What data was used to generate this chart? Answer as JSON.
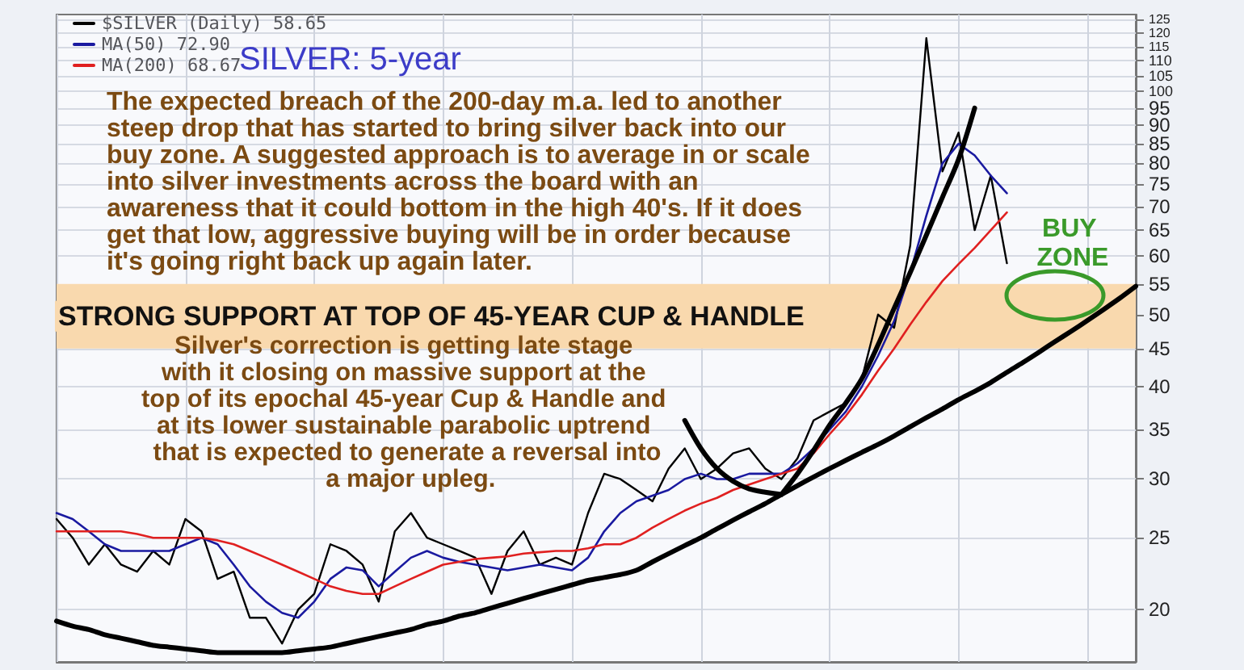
{
  "chart_data": {
    "type": "line",
    "title": "SILVER: 5-year",
    "categories": [
      null,
      null,
      null,
      null,
      null,
      null,
      null,
      null,
      null,
      null,
      null,
      null,
      null,
      null,
      null,
      null,
      null,
      null,
      null,
      null,
      null,
      null,
      null,
      null,
      null,
      null,
      null,
      null,
      null,
      null,
      null,
      null,
      null,
      null,
      null,
      null,
      null,
      null,
      null,
      null,
      null,
      null,
      null,
      null,
      null,
      null,
      null,
      null,
      null,
      null,
      null,
      null,
      null,
      null,
      null,
      null,
      null,
      null,
      null,
      null,
      null,
      null,
      null,
      null,
      null,
      null,
      null,
      null
    ],
    "series": [
      {
        "name": "$SILVER (Daily) 58.65",
        "color": "#000000",
        "values": [
          26.5,
          25,
          23,
          24.5,
          23,
          22.5,
          24,
          23,
          26.5,
          25.5,
          22,
          22.5,
          19.5,
          19.5,
          18,
          20,
          21,
          24.5,
          24,
          23,
          20.5,
          25.5,
          27,
          25,
          24.5,
          24,
          23.5,
          21,
          24,
          25.5,
          23,
          23.5,
          23,
          27,
          30.5,
          30,
          29,
          28,
          31,
          33,
          30,
          31,
          32.5,
          33,
          31,
          30,
          32,
          36,
          37,
          38,
          41,
          50,
          48,
          62,
          118,
          78,
          88,
          65,
          77,
          58.65,
          null,
          null,
          null,
          null,
          null,
          null,
          null,
          null
        ]
      },
      {
        "name": "MA(50) 72.90",
        "color": "#1a1aa0",
        "values": [
          27,
          26.5,
          25.5,
          24.5,
          24,
          24,
          24,
          24,
          24.5,
          25,
          24.5,
          23,
          21.5,
          20.5,
          19.8,
          19.5,
          20.5,
          22,
          22.8,
          22.6,
          21.5,
          22.5,
          23.5,
          24,
          23.5,
          23.2,
          23,
          22.8,
          22.6,
          22.8,
          23,
          22.8,
          22.6,
          23.5,
          25.5,
          27,
          28,
          28.5,
          29,
          30,
          30.5,
          30,
          30,
          30.5,
          30.5,
          30.5,
          31.5,
          33,
          35,
          37,
          40,
          44,
          49,
          57,
          68,
          80,
          85,
          82,
          77,
          72.9,
          null,
          null,
          null,
          null,
          null,
          null,
          null,
          null
        ]
      },
      {
        "name": "MA(200) 68.67",
        "color": "#e02020",
        "values": [
          25.5,
          25.5,
          25.5,
          25.5,
          25.5,
          25.3,
          25,
          25,
          25,
          25,
          24.8,
          24.5,
          24,
          23.5,
          23,
          22.5,
          22,
          21.5,
          21.2,
          21,
          21,
          21.5,
          22,
          22.5,
          23,
          23.2,
          23.4,
          23.5,
          23.6,
          23.8,
          23.9,
          24,
          24,
          24.2,
          24.5,
          24.5,
          25,
          25.8,
          26.5,
          27.2,
          27.8,
          28.3,
          29,
          29.5,
          30,
          30.5,
          31,
          32.5,
          34.5,
          36.5,
          39,
          42,
          45,
          48.5,
          52,
          55.5,
          58.5,
          61.5,
          65,
          68.67,
          null,
          null,
          null,
          null,
          null,
          null,
          null,
          null
        ]
      },
      {
        "color": "#000000",
        "values": [
          19.3,
          19,
          18.8,
          18.5,
          18.3,
          18.1,
          17.9,
          17.8,
          17.7,
          17.6,
          17.5,
          17.5,
          17.5,
          17.5,
          17.5,
          17.6,
          17.7,
          17.8,
          18,
          18.2,
          18.4,
          18.6,
          18.8,
          19.1,
          19.3,
          19.6,
          19.8,
          20.1,
          20.4,
          20.7,
          21,
          21.3,
          21.6,
          21.9,
          22.1,
          22.3,
          22.6,
          23.2,
          23.8,
          24.4,
          25,
          25.7,
          26.4,
          27.1,
          27.8,
          28.6,
          29.4,
          30.2,
          31,
          31.8,
          32.6,
          33.4,
          34.3,
          35.3,
          36.3,
          37.3,
          38.4,
          39.4,
          40.5,
          41.8,
          43.1,
          44.5,
          46,
          47.5,
          49.1,
          50.8,
          52.6,
          54.6
        ]
      },
      {
        "color": "#000000",
        "values": [
          null,
          null,
          null,
          null,
          null,
          null,
          null,
          null,
          null,
          null,
          null,
          null,
          null,
          null,
          null,
          null,
          null,
          null,
          null,
          null,
          null,
          null,
          null,
          null,
          null,
          null,
          null,
          null,
          null,
          null,
          null,
          null,
          null,
          null,
          null,
          null,
          null,
          null,
          null,
          null,
          null,
          null,
          null,
          null,
          null,
          28.6,
          30.5,
          32.8,
          35.5,
          38,
          41,
          45.5,
          51,
          57,
          64,
          72,
          81,
          95,
          null,
          null,
          null,
          null,
          null,
          null,
          null,
          null,
          null,
          null
        ]
      },
      {
        "color": "#000000",
        "values": [
          null,
          null,
          null,
          null,
          null,
          null,
          null,
          null,
          null,
          null,
          null,
          null,
          null,
          null,
          null,
          null,
          null,
          null,
          null,
          null,
          null,
          null,
          null,
          null,
          null,
          null,
          null,
          null,
          null,
          null,
          null,
          null,
          null,
          null,
          null,
          null,
          null,
          null,
          null,
          36,
          33,
          31,
          29.8,
          29.1,
          28.8,
          28.6,
          null,
          null,
          null,
          null,
          null,
          null,
          null,
          null,
          null,
          null,
          null,
          null,
          null,
          null,
          null,
          null,
          null,
          null,
          null,
          null,
          null,
          null
        ]
      }
    ],
    "bands": [
      {
        "axis": "y",
        "from": 45,
        "to": 55,
        "label": "STRONG SUPPORT AT TOP OF 45-YEAR CUP & HANDLE",
        "color": "#f9d9ae"
      }
    ],
    "annotations": [
      "The expected breach of the 200-day m.a. led to another steep drop that has started to bring silver back into our buy zone. A suggested approach is to average in or scale into silver investments across the board with an awareness that it could bottom in the high 40's. If it does get that low, aggressive buying will be in order because it's going right back up again later.",
      "Silver's correction is getting late stage with it closing on massive support at the top of its epochal 45-year Cup & Handle and at its lower sustainable parabolic uptrend that is expected to generate a reversal into a major upleg.",
      "BUY ZONE"
    ],
    "ylim": [
      17,
      127
    ],
    "yticks": [
      20,
      25,
      30,
      35,
      40,
      45,
      50,
      55,
      60,
      65,
      70,
      75,
      80,
      85,
      90,
      95,
      100,
      105,
      110,
      115,
      120,
      125
    ],
    "log": true,
    "grid": true,
    "legend": "top left",
    "tick_labels": "y",
    "marker": "none",
    "line_style": "solid"
  }
}
